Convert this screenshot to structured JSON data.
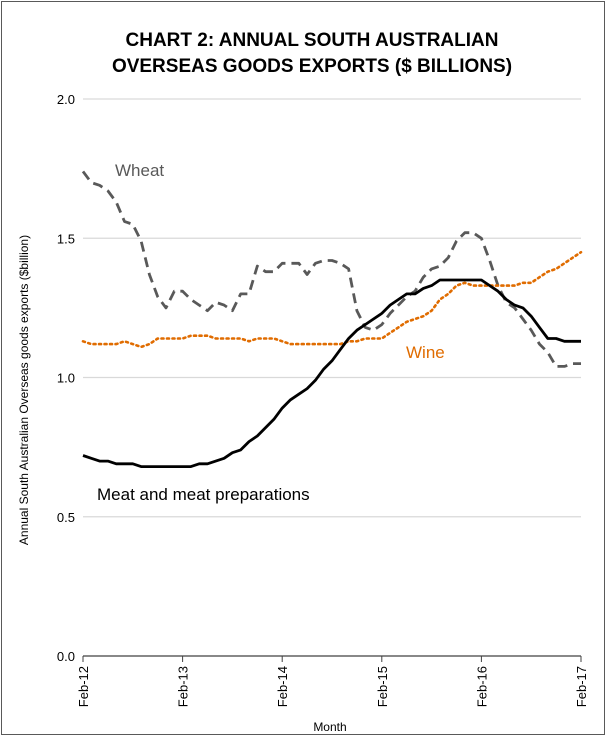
{
  "chart_data": {
    "type": "line",
    "title_line1": "CHART 2: ANNUAL SOUTH AUSTRALIAN",
    "title_line2": "OVERSEAS GOODS EXPORTS ($ BILLIONS)",
    "xlabel": "Month",
    "ylabel": "Annual South Australian Overseas  goods exports ($billion)",
    "ylim": [
      0,
      2
    ],
    "yticks": [
      "0.0",
      "0.5",
      "1.0",
      "1.5",
      "2.0"
    ],
    "xlim": [
      0,
      60
    ],
    "xtick_positions": [
      0,
      12,
      24,
      36,
      48,
      60
    ],
    "xticks": [
      "Feb-12",
      "Feb-13",
      "Feb-14",
      "Feb-15",
      "Feb-16",
      "Feb-17"
    ],
    "grid": true,
    "series": [
      {
        "name": "Wheat",
        "color": "#595959",
        "dash": "dashed",
        "x": [
          0,
          1,
          2,
          3,
          4,
          5,
          6,
          7,
          8,
          9,
          10,
          11,
          12,
          13,
          14,
          15,
          16,
          17,
          18,
          19,
          20,
          21,
          22,
          23,
          24,
          25,
          26,
          27,
          28,
          29,
          30,
          31,
          32,
          33,
          34,
          35,
          36,
          37,
          38,
          39,
          40,
          41,
          42,
          43,
          44,
          45,
          46,
          47,
          48,
          49,
          50,
          51,
          52,
          53,
          54,
          55,
          56,
          57,
          58,
          59,
          60
        ],
        "values": [
          1.74,
          1.7,
          1.69,
          1.67,
          1.63,
          1.56,
          1.55,
          1.49,
          1.37,
          1.29,
          1.25,
          1.31,
          1.31,
          1.28,
          1.26,
          1.24,
          1.27,
          1.26,
          1.24,
          1.3,
          1.3,
          1.4,
          1.38,
          1.38,
          1.41,
          1.41,
          1.41,
          1.37,
          1.41,
          1.42,
          1.42,
          1.41,
          1.39,
          1.24,
          1.18,
          1.17,
          1.19,
          1.23,
          1.26,
          1.29,
          1.31,
          1.36,
          1.39,
          1.4,
          1.43,
          1.49,
          1.52,
          1.52,
          1.5,
          1.42,
          1.33,
          1.27,
          1.25,
          1.21,
          1.17,
          1.12,
          1.09,
          1.04,
          1.04,
          1.05,
          1.05
        ]
      },
      {
        "name": "Wine",
        "color": "#e06c00",
        "dash": "dotted",
        "x": [
          0,
          1,
          2,
          3,
          4,
          5,
          6,
          7,
          8,
          9,
          10,
          11,
          12,
          13,
          14,
          15,
          16,
          17,
          18,
          19,
          20,
          21,
          22,
          23,
          24,
          25,
          26,
          27,
          28,
          29,
          30,
          31,
          32,
          33,
          34,
          35,
          36,
          37,
          38,
          39,
          40,
          41,
          42,
          43,
          44,
          45,
          46,
          47,
          48,
          49,
          50,
          51,
          52,
          53,
          54,
          55,
          56,
          57,
          58,
          59,
          60
        ],
        "values": [
          1.13,
          1.12,
          1.12,
          1.12,
          1.12,
          1.13,
          1.12,
          1.11,
          1.12,
          1.14,
          1.14,
          1.14,
          1.14,
          1.15,
          1.15,
          1.15,
          1.14,
          1.14,
          1.14,
          1.14,
          1.13,
          1.14,
          1.14,
          1.14,
          1.13,
          1.12,
          1.12,
          1.12,
          1.12,
          1.12,
          1.12,
          1.12,
          1.13,
          1.13,
          1.14,
          1.14,
          1.14,
          1.16,
          1.18,
          1.2,
          1.21,
          1.22,
          1.24,
          1.28,
          1.3,
          1.33,
          1.34,
          1.33,
          1.33,
          1.33,
          1.33,
          1.33,
          1.33,
          1.34,
          1.34,
          1.36,
          1.38,
          1.39,
          1.41,
          1.43,
          1.45
        ]
      },
      {
        "name": "Meat and meat preparations",
        "color": "#000000",
        "dash": "solid",
        "x": [
          0,
          1,
          2,
          3,
          4,
          5,
          6,
          7,
          8,
          9,
          10,
          11,
          12,
          13,
          14,
          15,
          16,
          17,
          18,
          19,
          20,
          21,
          22,
          23,
          24,
          25,
          26,
          27,
          28,
          29,
          30,
          31,
          32,
          33,
          34,
          35,
          36,
          37,
          38,
          39,
          40,
          41,
          42,
          43,
          44,
          45,
          46,
          47,
          48,
          49,
          50,
          51,
          52,
          53,
          54,
          55,
          56,
          57,
          58,
          59,
          60
        ],
        "values": [
          0.72,
          0.71,
          0.7,
          0.7,
          0.69,
          0.69,
          0.69,
          0.68,
          0.68,
          0.68,
          0.68,
          0.68,
          0.68,
          0.68,
          0.69,
          0.69,
          0.7,
          0.71,
          0.73,
          0.74,
          0.77,
          0.79,
          0.82,
          0.85,
          0.89,
          0.92,
          0.94,
          0.96,
          0.99,
          1.03,
          1.06,
          1.1,
          1.14,
          1.17,
          1.19,
          1.21,
          1.23,
          1.26,
          1.28,
          1.3,
          1.3,
          1.32,
          1.33,
          1.35,
          1.35,
          1.35,
          1.35,
          1.35,
          1.35,
          1.33,
          1.31,
          1.28,
          1.26,
          1.25,
          1.22,
          1.18,
          1.14,
          1.14,
          1.13,
          1.13,
          1.13
        ]
      }
    ]
  }
}
